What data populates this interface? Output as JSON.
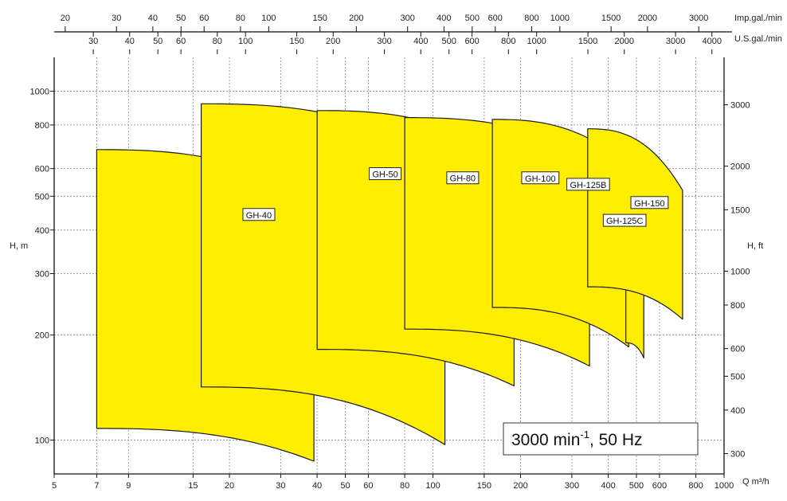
{
  "chart_data": {
    "type": "area",
    "title": "",
    "note": {
      "main": "3000 min",
      "sup": "-1",
      "rest": ", 50 Hz"
    },
    "x_axis": {
      "scale": "log",
      "range": [
        5,
        1000
      ],
      "unit_label": "Q  m³/h",
      "ticks": [
        5,
        7,
        9,
        15,
        20,
        30,
        40,
        50,
        60,
        80,
        100,
        150,
        200,
        300,
        400,
        500,
        600,
        800,
        1000
      ]
    },
    "y_axis": {
      "scale": "log",
      "range": [
        80,
        1250
      ],
      "label": "H, m",
      "ticks": [
        100,
        200,
        300,
        400,
        500,
        600,
        800,
        1000
      ]
    },
    "y2_axis": {
      "scale": "log",
      "label": "H, ft",
      "ticks": [
        300,
        400,
        500,
        600,
        800,
        1000,
        1500,
        2000,
        3000
      ]
    },
    "top_axis_1": {
      "unit_label": "Imp.gal./min",
      "ticks": [
        20,
        30,
        40,
        50,
        60,
        80,
        100,
        150,
        200,
        300,
        400,
        500,
        600,
        800,
        1000,
        1500,
        2000,
        3000
      ]
    },
    "top_axis_2": {
      "unit_label": "U.S.gal./min",
      "ticks": [
        30,
        40,
        50,
        60,
        80,
        100,
        150,
        200,
        300,
        400,
        500,
        600,
        800,
        1000,
        1500,
        2000,
        3000,
        4000
      ]
    },
    "fill_color": "#ffee00",
    "series": [
      {
        "name": "GH-40",
        "q_min": 7,
        "q_max": 39,
        "h_max_start": 680,
        "h_max_end": 500,
        "h_min_start": 108,
        "h_min_end": 87
      },
      {
        "name": "GH-50",
        "q_min": 16,
        "q_max": 110,
        "h_max_start": 920,
        "h_max_end": 640,
        "h_min_start": 142,
        "h_min_end": 97
      },
      {
        "name": "GH-80",
        "q_min": 40,
        "q_max": 190,
        "h_max_start": 880,
        "h_max_end": 630,
        "h_min_start": 182,
        "h_min_end": 143
      },
      {
        "name": "GH-100",
        "q_min": 80,
        "q_max": 345,
        "h_max_start": 840,
        "h_max_end": 650,
        "h_min_start": 208,
        "h_min_end": 163
      },
      {
        "name": "GH-125B",
        "q_min": 160,
        "q_max": 470,
        "h_max_start": 830,
        "h_max_end": 610,
        "h_min_start": 240,
        "h_min_end": 185
      },
      {
        "name": "GH-125C",
        "q_min": 460,
        "q_max": 530,
        "h_max_start": 600,
        "h_max_end": 510,
        "h_min_start": 190,
        "h_min_end": 172
      },
      {
        "name": "GH-150",
        "q_min": 340,
        "q_max": 720,
        "h_max_start": 780,
        "h_max_end": 520,
        "h_min_start": 275,
        "h_min_end": 222
      }
    ]
  }
}
